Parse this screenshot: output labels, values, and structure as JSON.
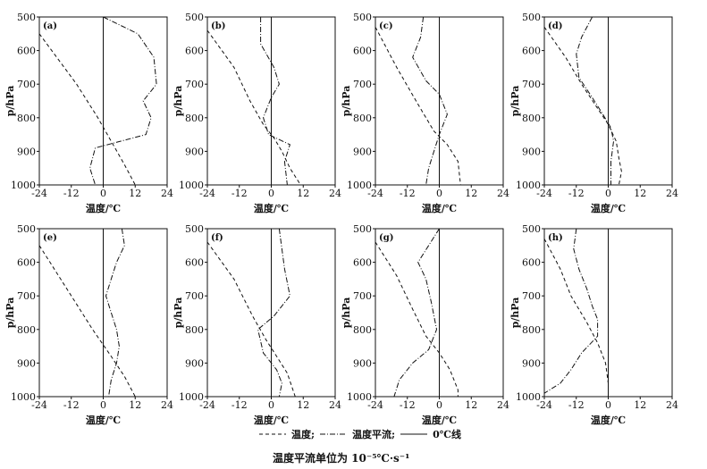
{
  "chart_data": [
    {
      "type": "line",
      "panel_label": "(a)",
      "xlabel": "温度/℃",
      "ylabel": "p/hPa",
      "xlim": [
        -24,
        24
      ],
      "ylim": [
        1000,
        500
      ],
      "xticks": [
        "-24",
        "-12",
        "0",
        "12",
        "24"
      ],
      "yticks": [
        "500",
        "600",
        "700",
        "800",
        "900",
        "1000"
      ],
      "series": [
        {
          "name": "温度",
          "style": "dashed",
          "points": [
            [
              -24,
              550
            ],
            [
              -10,
              700
            ],
            [
              -2,
              800
            ],
            [
              3,
              870
            ],
            [
              8,
              940
            ],
            [
              12,
              1000
            ]
          ]
        },
        {
          "name": "温度平流",
          "style": "dashdot",
          "points": [
            [
              0,
              500
            ],
            [
              13,
              550
            ],
            [
              19,
              620
            ],
            [
              20,
              700
            ],
            [
              15,
              750
            ],
            [
              18,
              800
            ],
            [
              16,
              850
            ],
            [
              -3,
              890
            ],
            [
              -5,
              950
            ],
            [
              -3,
              1000
            ]
          ]
        },
        {
          "name": "0℃线",
          "style": "solid",
          "points": [
            [
              0,
              500
            ],
            [
              0,
              1000
            ]
          ]
        }
      ]
    },
    {
      "type": "line",
      "panel_label": "(b)",
      "xlabel": "温度/℃",
      "ylabel": "p/hPa",
      "xlim": [
        -24,
        24
      ],
      "ylim": [
        1000,
        500
      ],
      "xticks": [
        "-24",
        "-12",
        "0",
        "12",
        "24"
      ],
      "yticks": [
        "500",
        "600",
        "700",
        "800",
        "900",
        "1000"
      ],
      "series": [
        {
          "name": "温度",
          "style": "dashed",
          "points": [
            [
              -24,
              540
            ],
            [
              -14,
              650
            ],
            [
              -8,
              750
            ],
            [
              -3,
              820
            ],
            [
              1,
              860
            ],
            [
              4,
              900
            ],
            [
              7,
              950
            ],
            [
              11,
              1000
            ]
          ]
        },
        {
          "name": "温度平流",
          "style": "dashdot",
          "points": [
            [
              -4,
              500
            ],
            [
              -4,
              580
            ],
            [
              1,
              650
            ],
            [
              3,
              700
            ],
            [
              0,
              740
            ],
            [
              -3,
              800
            ],
            [
              -1,
              850
            ],
            [
              7,
              880
            ],
            [
              5,
              930
            ],
            [
              6,
              1000
            ]
          ]
        },
        {
          "name": "0℃线",
          "style": "solid",
          "points": [
            [
              0,
              500
            ],
            [
              0,
              1000
            ]
          ]
        }
      ]
    },
    {
      "type": "line",
      "panel_label": "(c)",
      "xlabel": "温度/℃",
      "ylabel": "p/hPa",
      "xlim": [
        -24,
        24
      ],
      "ylim": [
        1000,
        500
      ],
      "xticks": [
        "-24",
        "-12",
        "0",
        "12",
        "24"
      ],
      "yticks": [
        "500",
        "600",
        "700",
        "800",
        "900",
        "1000"
      ],
      "series": [
        {
          "name": "温度",
          "style": "dashed",
          "points": [
            [
              -24,
              530
            ],
            [
              -16,
              650
            ],
            [
              -8,
              760
            ],
            [
              -2,
              840
            ],
            [
              3,
              880
            ],
            [
              7,
              930
            ],
            [
              8,
              1000
            ]
          ]
        },
        {
          "name": "温度平流",
          "style": "dashdot",
          "points": [
            [
              -6,
              500
            ],
            [
              -7,
              560
            ],
            [
              -10,
              620
            ],
            [
              -5,
              690
            ],
            [
              0,
              730
            ],
            [
              3,
              790
            ],
            [
              0,
              850
            ],
            [
              -2,
              900
            ],
            [
              -4,
              950
            ],
            [
              -5,
              1000
            ]
          ]
        },
        {
          "name": "0℃线",
          "style": "solid",
          "points": [
            [
              0,
              500
            ],
            [
              0,
              1000
            ]
          ]
        }
      ]
    },
    {
      "type": "line",
      "panel_label": "(d)",
      "xlabel": "温度/℃",
      "ylabel": "p/hPa",
      "xlim": [
        -24,
        24
      ],
      "ylim": [
        1000,
        500
      ],
      "xticks": [
        "-24",
        "-12",
        "0",
        "12",
        "24"
      ],
      "yticks": [
        "500",
        "600",
        "700",
        "800",
        "900",
        "1000"
      ],
      "series": [
        {
          "name": "温度",
          "style": "dashed",
          "points": [
            [
              -24,
              530
            ],
            [
              -16,
              620
            ],
            [
              -10,
              700
            ],
            [
              -5,
              760
            ],
            [
              0,
              820
            ],
            [
              3,
              870
            ],
            [
              4,
              920
            ],
            [
              5,
              960
            ],
            [
              4,
              1000
            ]
          ]
        },
        {
          "name": "温度平流",
          "style": "dashdot",
          "points": [
            [
              -6,
              500
            ],
            [
              -10,
              560
            ],
            [
              -12,
              610
            ],
            [
              -11,
              680
            ],
            [
              -6,
              740
            ],
            [
              -2,
              790
            ],
            [
              1,
              830
            ],
            [
              2,
              870
            ],
            [
              1,
              930
            ],
            [
              1,
              1000
            ]
          ]
        },
        {
          "name": "0℃线",
          "style": "solid",
          "points": [
            [
              0,
              500
            ],
            [
              0,
              1000
            ]
          ]
        }
      ]
    },
    {
      "type": "line",
      "panel_label": "(e)",
      "xlabel": "温度/℃",
      "ylabel": "p/hPa",
      "xlim": [
        -24,
        24
      ],
      "ylim": [
        1000,
        500
      ],
      "xticks": [
        "-24",
        "-12",
        "0",
        "12",
        "24"
      ],
      "yticks": [
        "500",
        "600",
        "700",
        "800",
        "900",
        "1000"
      ],
      "series": [
        {
          "name": "温度",
          "style": "dashed",
          "points": [
            [
              -24,
              550
            ],
            [
              -12,
              700
            ],
            [
              -4,
              800
            ],
            [
              3,
              880
            ],
            [
              8,
              940
            ],
            [
              12,
              1000
            ]
          ]
        },
        {
          "name": "温度平流",
          "style": "dashdot",
          "points": [
            [
              7,
              500
            ],
            [
              8,
              550
            ],
            [
              5,
              600
            ],
            [
              3,
              650
            ],
            [
              1,
              700
            ],
            [
              3,
              750
            ],
            [
              5,
              800
            ],
            [
              6,
              850
            ],
            [
              5,
              900
            ],
            [
              3,
              950
            ],
            [
              2,
              1000
            ]
          ]
        },
        {
          "name": "0℃线",
          "style": "solid",
          "points": [
            [
              0,
              500
            ],
            [
              0,
              1000
            ]
          ]
        }
      ]
    },
    {
      "type": "line",
      "panel_label": "(f)",
      "xlabel": "温度/℃",
      "ylabel": "p/hPa",
      "xlim": [
        -24,
        24
      ],
      "ylim": [
        1000,
        500
      ],
      "xticks": [
        "-24",
        "-12",
        "0",
        "12",
        "24"
      ],
      "yticks": [
        "500",
        "600",
        "700",
        "800",
        "900",
        "1000"
      ],
      "series": [
        {
          "name": "温度",
          "style": "dashed",
          "points": [
            [
              -24,
              540
            ],
            [
              -14,
              650
            ],
            [
              -7,
              760
            ],
            [
              -2,
              830
            ],
            [
              2,
              880
            ],
            [
              6,
              930
            ],
            [
              9,
              1000
            ]
          ]
        },
        {
          "name": "温度平流",
          "style": "dashdot",
          "points": [
            [
              3,
              500
            ],
            [
              4,
              560
            ],
            [
              5,
              620
            ],
            [
              7,
              700
            ],
            [
              1,
              760
            ],
            [
              -5,
              800
            ],
            [
              -3,
              870
            ],
            [
              2,
              920
            ],
            [
              4,
              960
            ],
            [
              3,
              1000
            ]
          ]
        },
        {
          "name": "0℃线",
          "style": "solid",
          "points": [
            [
              0,
              500
            ],
            [
              0,
              1000
            ]
          ]
        }
      ]
    },
    {
      "type": "line",
      "panel_label": "(g)",
      "xlabel": "温度/℃",
      "ylabel": "p/hPa",
      "xlim": [
        -24,
        24
      ],
      "ylim": [
        1000,
        500
      ],
      "xticks": [
        "-24",
        "-12",
        "0",
        "12",
        "24"
      ],
      "yticks": [
        "500",
        "600",
        "700",
        "800",
        "900",
        "1000"
      ],
      "series": [
        {
          "name": "温度",
          "style": "dashed",
          "points": [
            [
              -24,
              540
            ],
            [
              -16,
              640
            ],
            [
              -10,
              740
            ],
            [
              -5,
              820
            ],
            [
              0,
              870
            ],
            [
              4,
              920
            ],
            [
              7,
              980
            ],
            [
              7,
              1000
            ]
          ]
        },
        {
          "name": "温度平流",
          "style": "dashdot",
          "points": [
            [
              0,
              500
            ],
            [
              -4,
              550
            ],
            [
              -8,
              600
            ],
            [
              -5,
              650
            ],
            [
              -3,
              720
            ],
            [
              -1,
              800
            ],
            [
              -4,
              860
            ],
            [
              -10,
              900
            ],
            [
              -15,
              950
            ],
            [
              -17,
              1000
            ]
          ]
        },
        {
          "name": "0℃线",
          "style": "solid",
          "points": [
            [
              0,
              500
            ],
            [
              0,
              1000
            ]
          ]
        }
      ]
    },
    {
      "type": "line",
      "panel_label": "(h)",
      "xlabel": "温度/℃",
      "ylabel": "p/hPa",
      "xlim": [
        -24,
        24
      ],
      "ylim": [
        1000,
        500
      ],
      "xticks": [
        "-24",
        "-12",
        "0",
        "12",
        "24"
      ],
      "yticks": [
        "500",
        "600",
        "700",
        "800",
        "900",
        "1000"
      ],
      "series": [
        {
          "name": "温度",
          "style": "dashed",
          "points": [
            [
              -24,
              530
            ],
            [
              -18,
              620
            ],
            [
              -14,
              700
            ],
            [
              -8,
              780
            ],
            [
              -4,
              840
            ],
            [
              -1,
              900
            ],
            [
              0,
              960
            ],
            [
              0,
              1000
            ]
          ]
        },
        {
          "name": "温度平流",
          "style": "dashdot",
          "points": [
            [
              -12,
              500
            ],
            [
              -13,
              560
            ],
            [
              -11,
              620
            ],
            [
              -8,
              680
            ],
            [
              -6,
              730
            ],
            [
              -4,
              770
            ],
            [
              -4,
              820
            ],
            [
              -10,
              870
            ],
            [
              -14,
              920
            ],
            [
              -18,
              960
            ],
            [
              -24,
              990
            ]
          ]
        },
        {
          "name": "0℃线",
          "style": "solid",
          "points": [
            [
              0,
              500
            ],
            [
              0,
              1000
            ]
          ]
        }
      ]
    }
  ],
  "legend": {
    "temperature_label": "温度;",
    "advection_label": "温度平流;",
    "zero_line_label": "0℃线"
  },
  "note": "温度平流单位为 10⁻⁵℃·s⁻¹"
}
